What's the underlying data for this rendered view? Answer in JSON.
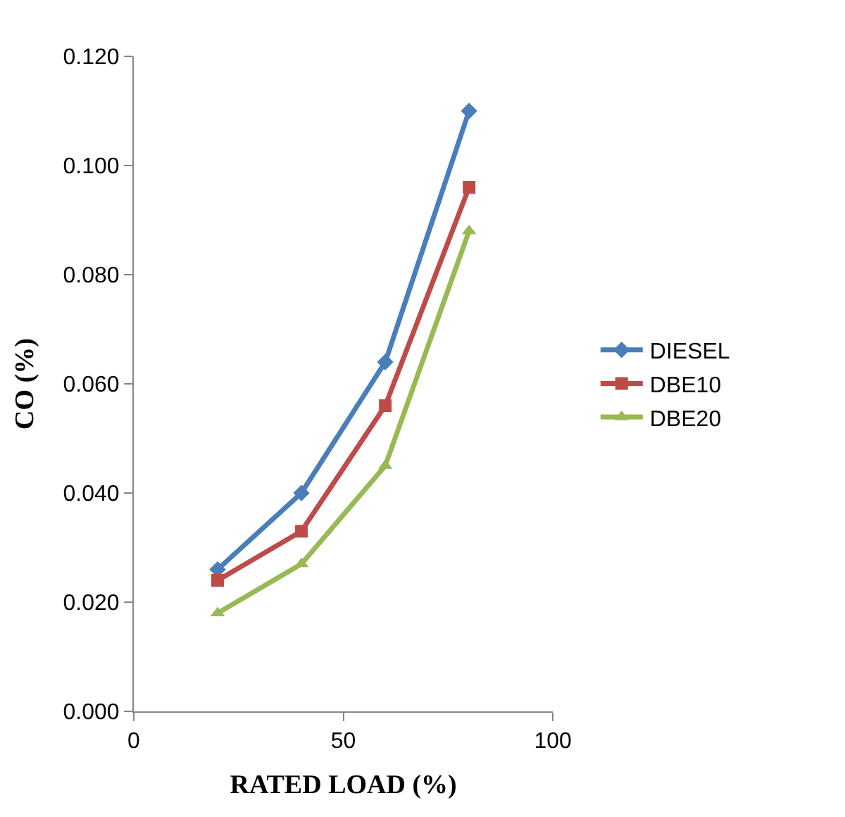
{
  "chart_data": {
    "type": "line",
    "xlabel": "RATED LOAD (%)",
    "ylabel": "CO (%)",
    "x": [
      20,
      40,
      60,
      80
    ],
    "series": [
      {
        "name": "DIESEL",
        "color": "#4a7ebb",
        "values": [
          0.026,
          0.04,
          0.064,
          0.11
        ],
        "marker": "diamond"
      },
      {
        "name": "DBE10",
        "color": "#be4b48",
        "values": [
          0.024,
          0.033,
          0.056,
          0.096
        ],
        "marker": "square"
      },
      {
        "name": "DBE20",
        "color": "#98b954",
        "values": [
          0.018,
          0.027,
          0.045,
          0.088
        ],
        "marker": "triangle"
      }
    ],
    "xlim": [
      0,
      100
    ],
    "xticks": [
      0,
      50,
      100
    ],
    "ylim": [
      0,
      0.12
    ],
    "yticks": [
      {
        "value": 0,
        "label": "0.000"
      },
      {
        "value": 0.02,
        "label": "0.020"
      },
      {
        "value": 0.04,
        "label": "0.040"
      },
      {
        "value": 0.06,
        "label": "0.060"
      },
      {
        "value": 0.08,
        "label": "0.080"
      },
      {
        "value": 0.1,
        "label": "0.100"
      },
      {
        "value": 0.12,
        "label": "0.120"
      }
    ],
    "grid": false,
    "legend": "right",
    "line_style": "solid"
  }
}
